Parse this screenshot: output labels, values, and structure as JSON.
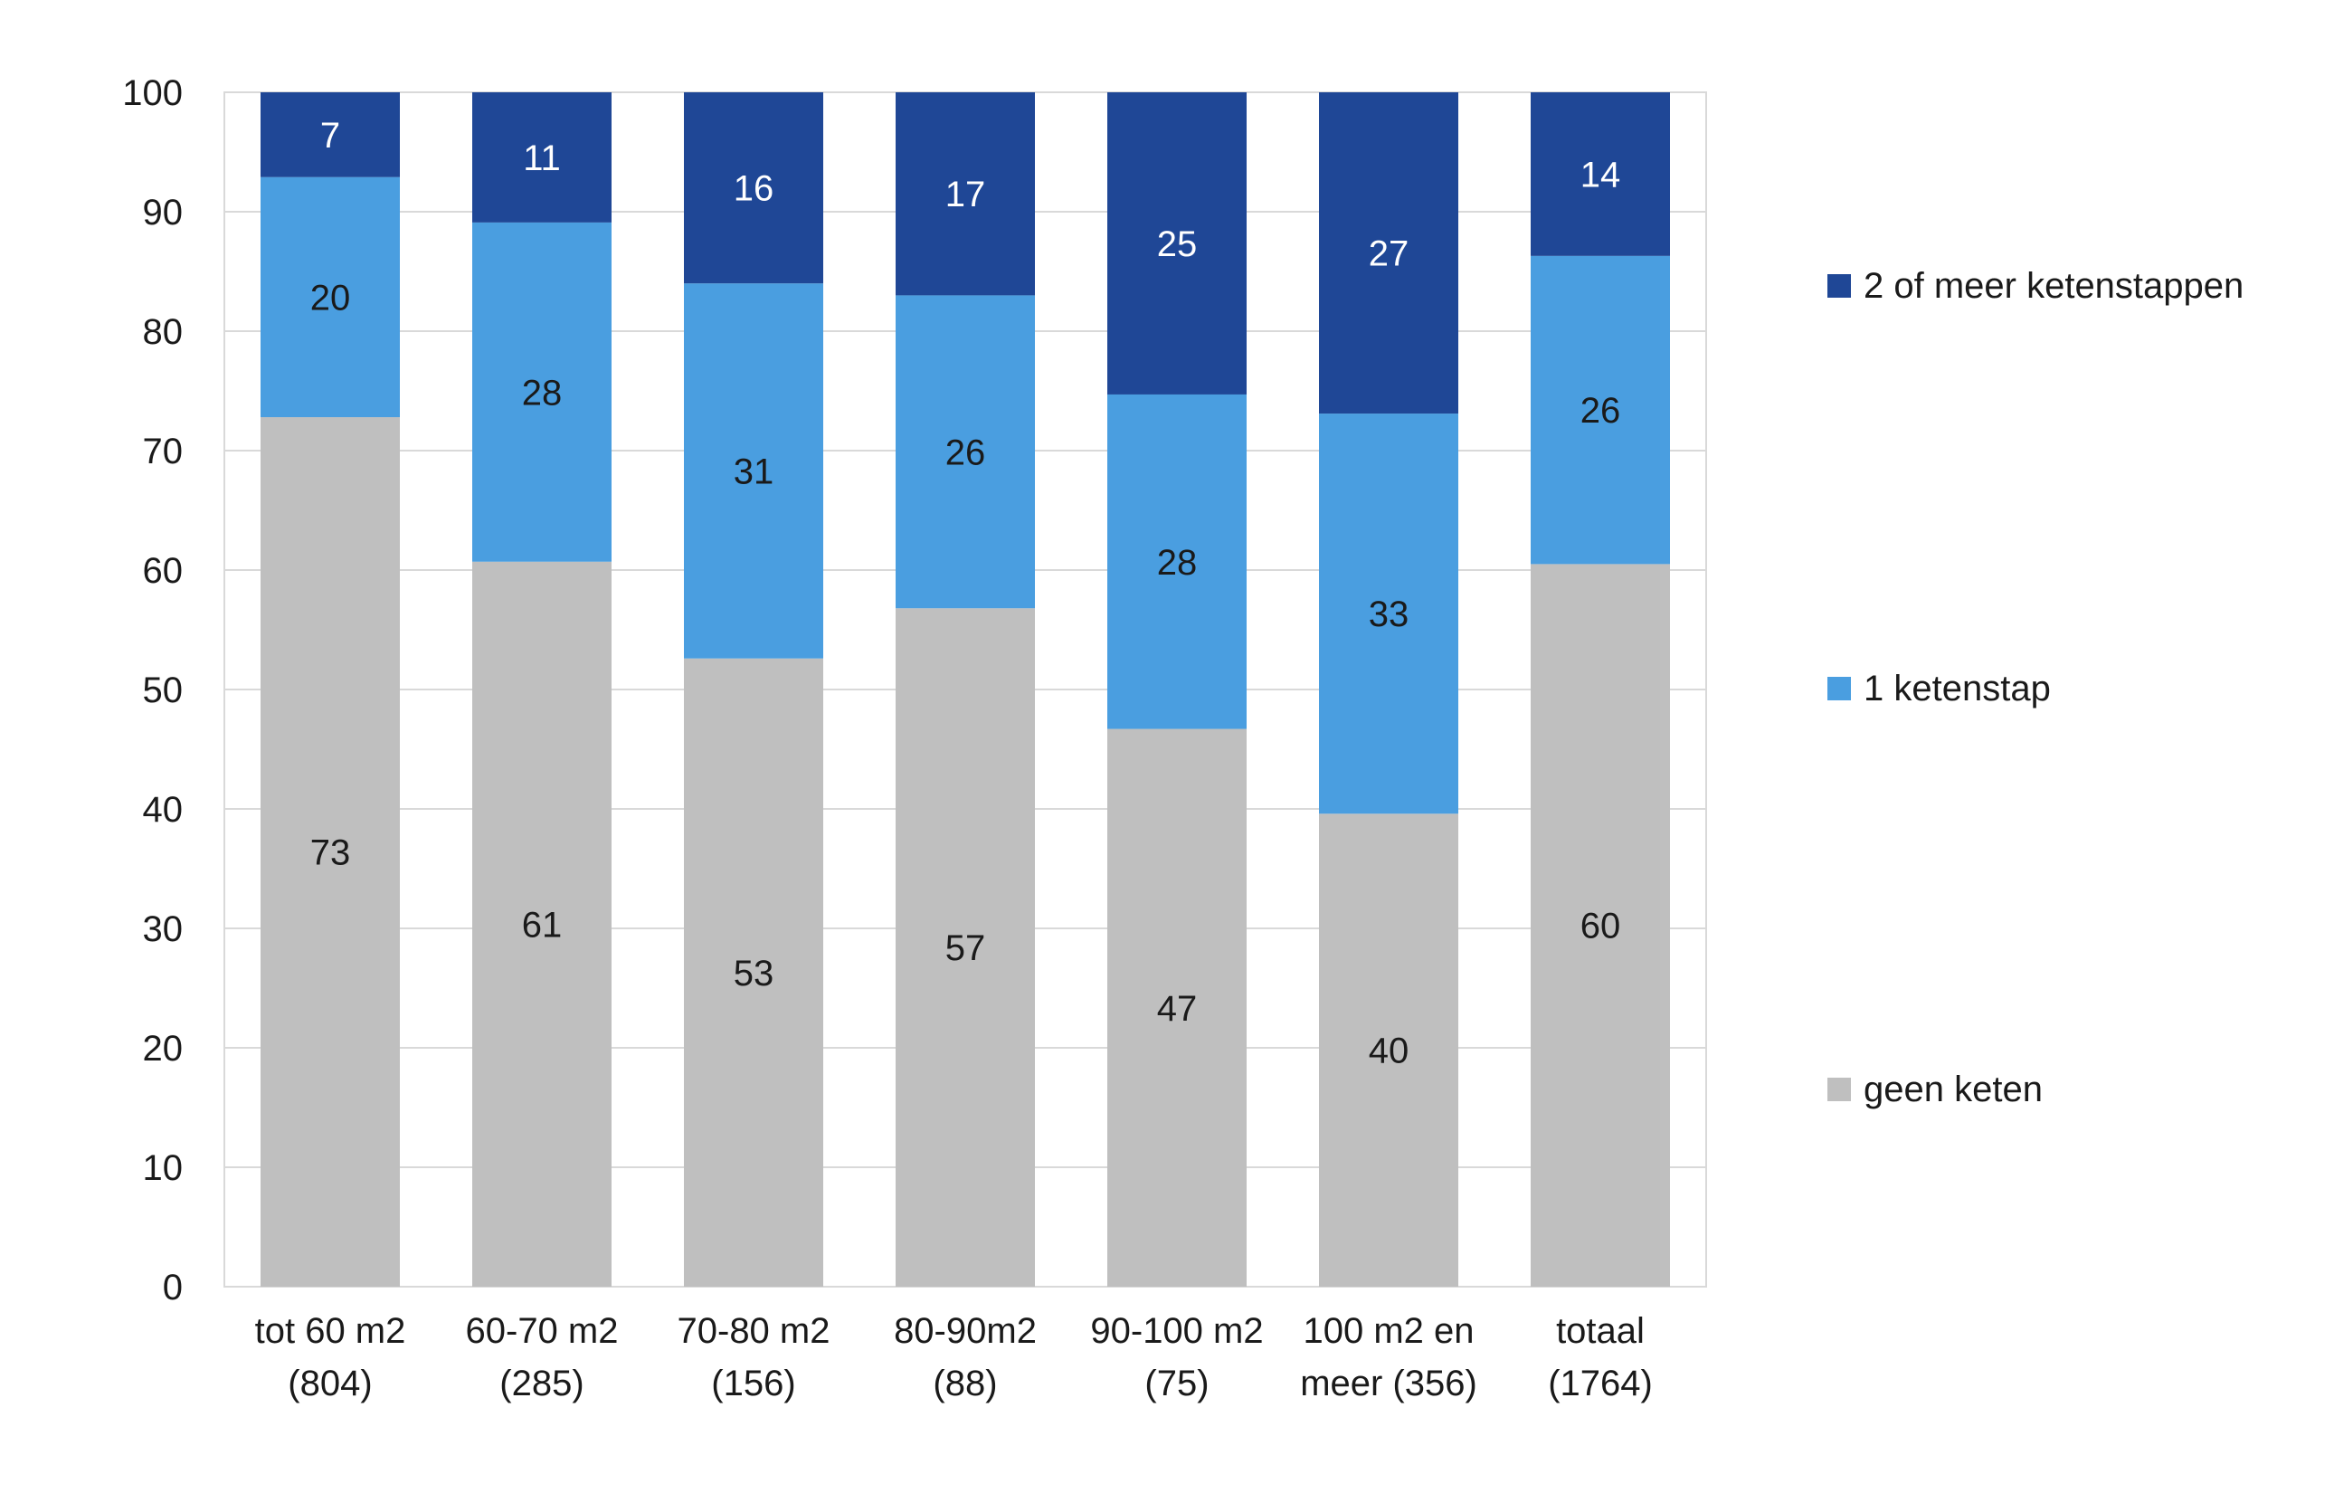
{
  "chart_data": {
    "type": "bar",
    "stacked": true,
    "categories": [
      [
        "tot 60 m2",
        "(804)"
      ],
      [
        "60-70 m2",
        "(285)"
      ],
      [
        "70-80 m2",
        "(156)"
      ],
      [
        "80-90m2",
        "(88)"
      ],
      [
        "90-100 m2",
        "(75)"
      ],
      [
        "100 m2 en",
        "meer (356)"
      ],
      [
        "totaal",
        "(1764)"
      ]
    ],
    "series": [
      {
        "name": "geen keten",
        "color": "#bfbfbf",
        "label_color": "#1a1a1a",
        "values": [
          72.8,
          60.7,
          52.6,
          56.8,
          46.7,
          39.6,
          60.5
        ],
        "labels": [
          "73",
          "61",
          "53",
          "57",
          "47",
          "40",
          "60"
        ]
      },
      {
        "name": "1 ketenstap",
        "color": "#4a9ee0",
        "label_color": "#1a1a1a",
        "values": [
          20.1,
          28.4,
          31.4,
          26.2,
          28.0,
          33.5,
          25.8
        ],
        "labels": [
          "20",
          "28",
          "31",
          "26",
          "28",
          "33",
          "26"
        ]
      },
      {
        "name": "2 of meer ketenstappen",
        "color": "#1f4796",
        "label_color": "#ffffff",
        "values": [
          7.1,
          10.9,
          16.0,
          17.0,
          25.3,
          26.9,
          13.7
        ],
        "labels": [
          "7",
          "11",
          "16",
          "17",
          "25",
          "27",
          "14"
        ]
      }
    ],
    "legend_order": [
      2,
      1,
      0
    ],
    "ylim": [
      0,
      100
    ],
    "yticks": [
      "0",
      "10",
      "20",
      "30",
      "40",
      "50",
      "60",
      "70",
      "80",
      "90",
      "100"
    ],
    "grid": true,
    "legend_position": "right",
    "title": "",
    "xlabel": "",
    "ylabel": ""
  }
}
